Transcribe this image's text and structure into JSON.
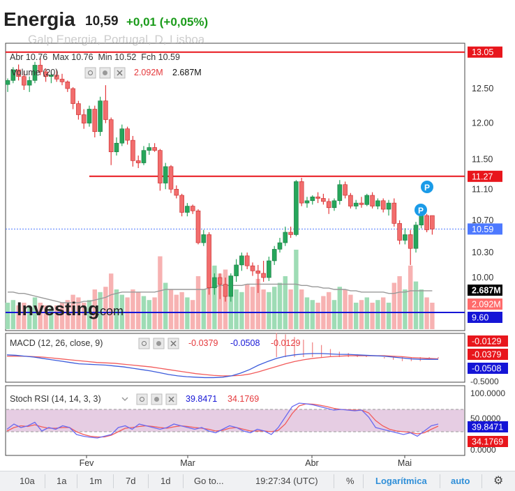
{
  "header": {
    "title": "Energia",
    "price": "10,59",
    "change": "+0,01 (+0,05%)"
  },
  "main_pane": {
    "ohlc_text": "Abr 10.76  Max 10.76  Min 10.52  Fch 10.59",
    "overlapped_subtitle": "Galp Energia, Portugal, D, Lisboa",
    "volume_label": "Volume (20)",
    "volume_val_1": "2.092M",
    "volume_val_2": "2.687M",
    "watermark": "Investing",
    "watermark_suffix": ".com",
    "y_ticks": [
      "12.50",
      "12.00",
      "11.50",
      "11.10",
      "10.70",
      "10.30",
      "10.00"
    ],
    "price_tags": [
      {
        "label": "13.05",
        "value": 13.05,
        "bg": "#e8161c",
        "fg": "#ffffff"
      },
      {
        "label": "11.27",
        "value": 11.27,
        "bg": "#e8161c",
        "fg": "#ffffff"
      },
      {
        "label": "10.59",
        "value": 10.59,
        "bg": "#4d79ff",
        "fg": "#ffffff"
      }
    ],
    "volume_tags": [
      {
        "label": "2.687M",
        "bg": "#000000",
        "fg": "#ffffff"
      },
      {
        "label": "2.092M",
        "bg": "#ff6b6b",
        "fg": "#ffffff"
      },
      {
        "label": "9.60",
        "bg": "#1515d6",
        "fg": "#ffffff"
      }
    ],
    "markers": [
      "P",
      "P"
    ]
  },
  "macd_pane": {
    "label": "MACD (12, 26, close, 9)",
    "v1": "-0.0379",
    "v2": "-0.0508",
    "v3": "-0.0129",
    "tags": [
      {
        "label": "-0.0129",
        "bg": "#e8161c"
      },
      {
        "label": "-0.0379",
        "bg": "#e8161c"
      },
      {
        "label": "-0.0508",
        "bg": "#1515d6"
      }
    ],
    "bottom_tick": "-0.5000"
  },
  "stoch_pane": {
    "label": "Stoch RSI (14, 14, 3, 3)",
    "v1": "39.8471",
    "v2": "34.1769",
    "ticks": [
      "100.0000",
      "50.0000",
      "0.0000"
    ],
    "tags": [
      {
        "label": "39.8471",
        "bg": "#1515d6"
      },
      {
        "label": "34.1769",
        "bg": "#e8161c"
      }
    ]
  },
  "x_labels": [
    "Fev",
    "Mar",
    "Abr",
    "Mai"
  ],
  "toolbar": {
    "b10a": "10a",
    "b1a": "1a",
    "b1m": "1m",
    "b7d": "7d",
    "b1d": "1d",
    "goto": "Go to...",
    "time": "19:27:34 (UTC)",
    "pct": "%",
    "log": "Logarítmica",
    "auto": "auto"
  },
  "colors": {
    "up": "#26a65b",
    "down": "#e5383b",
    "up_vol": "#9edcb5",
    "down_vol": "#f7b2b2",
    "macd": "#3b5bdb",
    "signal": "#f25a5a",
    "stoch_k": "#6a6af0",
    "stoch_d": "#f25a5a",
    "stoch_band": "#e6cde3"
  },
  "chart_data": [
    {
      "type": "candlestick",
      "title": "Energia",
      "y_axis": {
        "ticks": [
          12.5,
          12.0,
          11.5,
          11.1,
          10.7,
          10.3,
          10.0
        ],
        "scale": "log"
      },
      "x_axis_labels": [
        "Fev",
        "Mar",
        "Abr",
        "Mai"
      ],
      "horizontal_lines": [
        13.05,
        11.27,
        10.59,
        9.6
      ],
      "last": {
        "open": 10.76,
        "high": 10.76,
        "low": 10.52,
        "close": 10.59
      },
      "candles": [
        {
          "o": 12.56,
          "h": 12.65,
          "l": 12.45,
          "c": 12.62
        },
        {
          "o": 12.62,
          "h": 12.82,
          "l": 12.58,
          "c": 12.78
        },
        {
          "o": 12.78,
          "h": 12.86,
          "l": 12.62,
          "c": 12.68
        },
        {
          "o": 12.68,
          "h": 12.76,
          "l": 12.48,
          "c": 12.55
        },
        {
          "o": 12.55,
          "h": 12.68,
          "l": 12.45,
          "c": 12.62
        },
        {
          "o": 12.62,
          "h": 12.9,
          "l": 12.58,
          "c": 12.85
        },
        {
          "o": 12.85,
          "h": 12.96,
          "l": 12.7,
          "c": 12.75
        },
        {
          "o": 12.75,
          "h": 12.8,
          "l": 12.6,
          "c": 12.68
        },
        {
          "o": 12.68,
          "h": 12.75,
          "l": 12.58,
          "c": 12.7
        },
        {
          "o": 12.7,
          "h": 12.78,
          "l": 12.6,
          "c": 12.64
        },
        {
          "o": 12.64,
          "h": 12.72,
          "l": 12.55,
          "c": 12.6
        },
        {
          "o": 12.6,
          "h": 12.62,
          "l": 12.45,
          "c": 12.5
        },
        {
          "o": 12.5,
          "h": 12.52,
          "l": 12.2,
          "c": 12.28
        },
        {
          "o": 12.28,
          "h": 12.32,
          "l": 12.05,
          "c": 12.12
        },
        {
          "o": 12.12,
          "h": 12.2,
          "l": 11.92,
          "c": 12.0
        },
        {
          "o": 12.0,
          "h": 12.25,
          "l": 11.95,
          "c": 12.2
        },
        {
          "o": 12.2,
          "h": 12.25,
          "l": 11.8,
          "c": 11.88
        },
        {
          "o": 11.88,
          "h": 12.38,
          "l": 11.82,
          "c": 12.32
        },
        {
          "o": 12.32,
          "h": 12.55,
          "l": 12.0,
          "c": 12.05
        },
        {
          "o": 12.05,
          "h": 12.08,
          "l": 11.42,
          "c": 11.6
        },
        {
          "o": 11.6,
          "h": 11.8,
          "l": 11.55,
          "c": 11.72
        },
        {
          "o": 11.72,
          "h": 11.98,
          "l": 11.68,
          "c": 11.92
        },
        {
          "o": 11.92,
          "h": 11.95,
          "l": 11.7,
          "c": 11.76
        },
        {
          "o": 11.76,
          "h": 11.82,
          "l": 11.4,
          "c": 11.48
        },
        {
          "o": 11.48,
          "h": 11.55,
          "l": 11.38,
          "c": 11.45
        },
        {
          "o": 11.45,
          "h": 11.68,
          "l": 11.42,
          "c": 11.62
        },
        {
          "o": 11.62,
          "h": 11.72,
          "l": 11.56,
          "c": 11.66
        },
        {
          "o": 11.66,
          "h": 11.72,
          "l": 11.6,
          "c": 11.62
        },
        {
          "o": 11.62,
          "h": 11.64,
          "l": 11.08,
          "c": 11.18
        },
        {
          "o": 11.18,
          "h": 11.45,
          "l": 11.1,
          "c": 11.4
        },
        {
          "o": 11.4,
          "h": 11.42,
          "l": 11.05,
          "c": 11.1
        },
        {
          "o": 11.1,
          "h": 11.15,
          "l": 10.98,
          "c": 11.02
        },
        {
          "o": 11.02,
          "h": 11.04,
          "l": 10.75,
          "c": 10.8
        },
        {
          "o": 10.8,
          "h": 10.92,
          "l": 10.75,
          "c": 10.88
        },
        {
          "o": 10.88,
          "h": 10.9,
          "l": 10.78,
          "c": 10.82
        },
        {
          "o": 10.82,
          "h": 10.84,
          "l": 10.4,
          "c": 10.42
        },
        {
          "o": 10.42,
          "h": 10.58,
          "l": 10.38,
          "c": 10.52
        },
        {
          "o": 10.52,
          "h": 10.55,
          "l": 9.8,
          "c": 9.88
        },
        {
          "o": 9.88,
          "h": 10.05,
          "l": 9.8,
          "c": 10.0
        },
        {
          "o": 10.0,
          "h": 10.05,
          "l": 9.75,
          "c": 9.92
        },
        {
          "o": 9.92,
          "h": 10.0,
          "l": 9.72,
          "c": 9.78
        },
        {
          "o": 9.78,
          "h": 10.05,
          "l": 9.72,
          "c": 10.02
        },
        {
          "o": 10.02,
          "h": 10.22,
          "l": 9.95,
          "c": 10.15
        },
        {
          "o": 10.15,
          "h": 10.3,
          "l": 10.08,
          "c": 10.26
        },
        {
          "o": 10.26,
          "h": 10.3,
          "l": 10.1,
          "c": 10.14
        },
        {
          "o": 10.14,
          "h": 10.18,
          "l": 10.02,
          "c": 10.08
        },
        {
          "o": 10.08,
          "h": 10.15,
          "l": 9.82,
          "c": 10.05
        },
        {
          "o": 10.05,
          "h": 10.2,
          "l": 9.95,
          "c": 10.0
        },
        {
          "o": 10.0,
          "h": 10.25,
          "l": 9.96,
          "c": 10.2
        },
        {
          "o": 10.2,
          "h": 10.38,
          "l": 10.15,
          "c": 10.34
        },
        {
          "o": 10.34,
          "h": 10.48,
          "l": 10.3,
          "c": 10.42
        },
        {
          "o": 10.42,
          "h": 10.62,
          "l": 10.38,
          "c": 10.55
        },
        {
          "o": 10.55,
          "h": 10.62,
          "l": 10.48,
          "c": 10.52
        },
        {
          "o": 10.52,
          "h": 11.22,
          "l": 10.5,
          "c": 11.2
        },
        {
          "o": 11.2,
          "h": 11.25,
          "l": 10.88,
          "c": 10.92
        },
        {
          "o": 10.92,
          "h": 11.0,
          "l": 10.86,
          "c": 10.95
        },
        {
          "o": 10.95,
          "h": 11.02,
          "l": 10.9,
          "c": 11.0
        },
        {
          "o": 11.0,
          "h": 11.06,
          "l": 10.92,
          "c": 10.98
        },
        {
          "o": 10.98,
          "h": 11.04,
          "l": 10.9,
          "c": 10.94
        },
        {
          "o": 10.94,
          "h": 10.98,
          "l": 10.78,
          "c": 10.86
        },
        {
          "o": 10.86,
          "h": 10.98,
          "l": 10.82,
          "c": 10.95
        },
        {
          "o": 10.95,
          "h": 11.22,
          "l": 10.9,
          "c": 11.16
        },
        {
          "o": 11.16,
          "h": 11.2,
          "l": 10.98,
          "c": 11.02
        },
        {
          "o": 11.02,
          "h": 11.05,
          "l": 10.85,
          "c": 10.88
        },
        {
          "o": 10.88,
          "h": 10.96,
          "l": 10.84,
          "c": 10.92
        },
        {
          "o": 10.92,
          "h": 11.0,
          "l": 10.86,
          "c": 10.9
        },
        {
          "o": 10.9,
          "h": 11.04,
          "l": 10.88,
          "c": 11.02
        },
        {
          "o": 11.02,
          "h": 11.06,
          "l": 10.85,
          "c": 10.88
        },
        {
          "o": 10.88,
          "h": 10.98,
          "l": 10.84,
          "c": 10.95
        },
        {
          "o": 10.95,
          "h": 10.98,
          "l": 10.8,
          "c": 10.84
        },
        {
          "o": 10.84,
          "h": 10.96,
          "l": 10.76,
          "c": 10.92
        },
        {
          "o": 10.92,
          "h": 10.98,
          "l": 10.62,
          "c": 10.66
        },
        {
          "o": 10.66,
          "h": 10.7,
          "l": 10.4,
          "c": 10.45
        },
        {
          "o": 10.45,
          "h": 10.6,
          "l": 10.4,
          "c": 10.52
        },
        {
          "o": 10.52,
          "h": 10.58,
          "l": 10.15,
          "c": 10.35
        },
        {
          "o": 10.35,
          "h": 10.68,
          "l": 10.3,
          "c": 10.64
        },
        {
          "o": 10.64,
          "h": 10.82,
          "l": 10.6,
          "c": 10.76
        },
        {
          "o": 10.76,
          "h": 10.78,
          "l": 10.55,
          "c": 10.58
        },
        {
          "o": 10.76,
          "h": 10.76,
          "l": 10.52,
          "c": 10.59
        }
      ],
      "volume": [
        0.2,
        0.22,
        0.18,
        0.2,
        0.17,
        0.24,
        0.2,
        0.18,
        0.16,
        0.18,
        0.2,
        0.22,
        0.26,
        0.24,
        0.2,
        0.22,
        0.3,
        0.28,
        0.32,
        0.42,
        0.3,
        0.26,
        0.24,
        0.3,
        0.28,
        0.25,
        0.22,
        0.24,
        0.55,
        0.35,
        0.3,
        0.26,
        0.28,
        0.24,
        0.22,
        0.4,
        0.3,
        0.55,
        0.48,
        0.42,
        0.45,
        0.35,
        0.3,
        0.28,
        0.34,
        0.32,
        0.38,
        0.3,
        0.28,
        0.32,
        0.35,
        0.4,
        0.3,
        0.6,
        0.3,
        0.24,
        0.22,
        0.2,
        0.25,
        0.28,
        0.22,
        0.32,
        0.3,
        0.26,
        0.2,
        0.22,
        0.24,
        0.2,
        0.22,
        0.24,
        0.2,
        0.35,
        0.4,
        0.3,
        0.48,
        0.36,
        0.3,
        0.24,
        0.2
      ],
      "volume_ma": [
        0.28,
        0.28,
        0.27,
        0.27,
        0.26,
        0.25,
        0.24,
        0.23,
        0.22,
        0.21,
        0.2,
        0.2,
        0.2,
        0.2,
        0.21,
        0.21,
        0.22,
        0.23,
        0.24,
        0.26,
        0.27,
        0.28,
        0.28,
        0.28,
        0.28,
        0.28,
        0.28,
        0.28,
        0.29,
        0.3,
        0.3,
        0.3,
        0.3,
        0.3,
        0.3,
        0.3,
        0.3,
        0.31,
        0.32,
        0.33,
        0.33,
        0.33,
        0.33,
        0.33,
        0.34,
        0.34,
        0.34,
        0.34,
        0.34,
        0.34,
        0.34,
        0.34,
        0.34,
        0.34,
        0.33,
        0.33,
        0.32,
        0.32,
        0.31,
        0.31,
        0.3,
        0.3,
        0.3,
        0.29,
        0.29,
        0.28,
        0.28,
        0.28,
        0.28,
        0.28,
        0.27,
        0.27,
        0.28,
        0.28,
        0.29,
        0.29,
        0.29,
        0.29,
        0.29
      ],
      "volume_axis": [
        "2.687M",
        "2.092M"
      ]
    },
    {
      "type": "line",
      "title": "MACD (12, 26, close, 9)",
      "series": [
        {
          "name": "MACD",
          "last": -0.0508,
          "values": [
            0.05,
            0.04,
            0.02,
            0.0,
            -0.03,
            -0.06,
            -0.09,
            -0.12,
            -0.15,
            -0.16,
            -0.17,
            -0.18,
            -0.2,
            -0.22,
            -0.25,
            -0.28,
            -0.31,
            -0.35,
            -0.39,
            -0.42,
            -0.44,
            -0.45,
            -0.46,
            -0.46,
            -0.45,
            -0.42,
            -0.36,
            -0.28,
            -0.18,
            -0.1,
            -0.03,
            0.02,
            0.05,
            0.07,
            0.08,
            0.08,
            0.07,
            0.06,
            0.06,
            0.05,
            0.04,
            0.03,
            0.02,
            0.0,
            -0.02,
            -0.04,
            -0.05,
            -0.05,
            -0.05
          ]
        },
        {
          "name": "Signal",
          "last": -0.0379,
          "values": [
            0.02,
            0.02,
            0.02,
            0.01,
            0.0,
            -0.02,
            -0.04,
            -0.06,
            -0.08,
            -0.1,
            -0.12,
            -0.13,
            -0.14,
            -0.16,
            -0.18,
            -0.2,
            -0.22,
            -0.25,
            -0.28,
            -0.31,
            -0.34,
            -0.37,
            -0.39,
            -0.41,
            -0.42,
            -0.42,
            -0.41,
            -0.38,
            -0.33,
            -0.27,
            -0.21,
            -0.15,
            -0.1,
            -0.06,
            -0.03,
            -0.01,
            0.01,
            0.02,
            0.03,
            0.03,
            0.03,
            0.03,
            0.03,
            0.02,
            0.01,
            -0.01,
            -0.02,
            -0.03,
            -0.04
          ]
        },
        {
          "name": "Histogram",
          "last": -0.0129
        }
      ],
      "y_ticks": [
        -0.5
      ]
    },
    {
      "type": "line",
      "title": "Stoch RSI (14, 14, 3, 3)",
      "y_ticks": [
        100,
        50,
        0
      ],
      "band": [
        20,
        80
      ],
      "series": [
        {
          "name": "K",
          "last": 39.8471,
          "values": [
            25,
            40,
            30,
            35,
            45,
            20,
            30,
            25,
            35,
            30,
            10,
            5,
            2,
            0,
            5,
            10,
            30,
            35,
            25,
            40,
            35,
            30,
            25,
            30,
            40,
            35,
            30,
            25,
            30,
            20,
            15,
            25,
            35,
            30,
            20,
            15,
            25,
            20,
            10,
            30,
            60,
            90,
            100,
            98,
            95,
            90,
            85,
            80,
            82,
            80,
            78,
            80,
            60,
            30,
            25,
            20,
            15,
            10,
            15,
            5,
            20,
            35,
            40
          ]
        },
        {
          "name": "D",
          "last": 34.1769,
          "values": [
            20,
            30,
            35,
            33,
            38,
            32,
            28,
            28,
            30,
            30,
            18,
            10,
            5,
            3,
            3,
            8,
            18,
            28,
            30,
            33,
            35,
            33,
            30,
            28,
            32,
            35,
            33,
            30,
            28,
            25,
            20,
            22,
            28,
            30,
            25,
            20,
            20,
            20,
            18,
            22,
            40,
            70,
            92,
            98,
            97,
            94,
            90,
            85,
            82,
            81,
            80,
            80,
            72,
            50,
            35,
            25,
            20,
            18,
            16,
            12,
            15,
            25,
            34
          ]
        }
      ]
    }
  ]
}
